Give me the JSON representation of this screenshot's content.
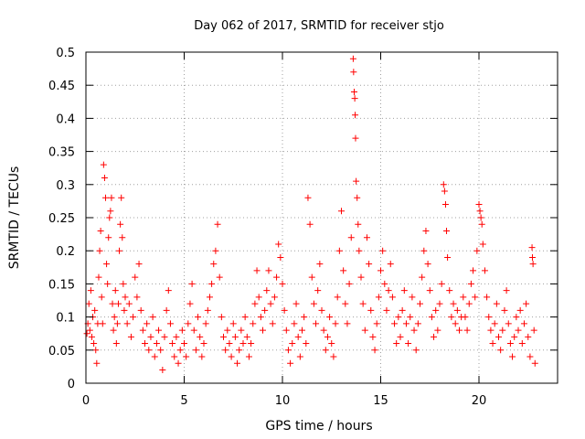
{
  "chart_data": {
    "type": "scatter",
    "title": "Day 062 of 2017, SRMTID for receiver stjo",
    "xlabel": "GPS time / hours",
    "ylabel": "SRMTID / TECUs",
    "xlim": [
      0,
      24
    ],
    "ylim": [
      0,
      0.5
    ],
    "xticks": [
      0,
      5,
      10,
      15,
      20
    ],
    "xtick_labels": [
      "0",
      "5",
      "10",
      "15",
      "20"
    ],
    "yticks": [
      0,
      0.05,
      0.1,
      0.15,
      0.2,
      0.25,
      0.3,
      0.35,
      0.4,
      0.45,
      0.5
    ],
    "ytick_labels": [
      "0",
      "0.05",
      "0.1",
      "0.15",
      "0.2",
      "0.25",
      "0.3",
      "0.35",
      "0.4",
      "0.45",
      "0.5"
    ],
    "grid": true,
    "marker": "+",
    "color": "#ff0000",
    "series": [
      {
        "name": "SRMTID",
        "points": [
          [
            0.05,
            0.075
          ],
          [
            0.1,
            0.09
          ],
          [
            0.15,
            0.12
          ],
          [
            0.2,
            0.08
          ],
          [
            0.25,
            0.14
          ],
          [
            0.3,
            0.07
          ],
          [
            0.35,
            0.1
          ],
          [
            0.4,
            0.06
          ],
          [
            0.45,
            0.11
          ],
          [
            0.5,
            0.05
          ],
          [
            0.55,
            0.03
          ],
          [
            0.6,
            0.09
          ],
          [
            0.65,
            0.16
          ],
          [
            0.7,
            0.2
          ],
          [
            0.75,
            0.23
          ],
          [
            0.8,
            0.13
          ],
          [
            0.85,
            0.09
          ],
          [
            0.9,
            0.33
          ],
          [
            0.95,
            0.31
          ],
          [
            1.0,
            0.28
          ],
          [
            1.05,
            0.18
          ],
          [
            1.1,
            0.15
          ],
          [
            1.15,
            0.22
          ],
          [
            1.2,
            0.25
          ],
          [
            1.25,
            0.26
          ],
          [
            1.3,
            0.28
          ],
          [
            1.35,
            0.12
          ],
          [
            1.4,
            0.08
          ],
          [
            1.45,
            0.1
          ],
          [
            1.5,
            0.14
          ],
          [
            1.55,
            0.06
          ],
          [
            1.6,
            0.09
          ],
          [
            1.65,
            0.12
          ],
          [
            1.7,
            0.2
          ],
          [
            1.75,
            0.24
          ],
          [
            1.8,
            0.28
          ],
          [
            1.85,
            0.22
          ],
          [
            1.9,
            0.15
          ],
          [
            1.95,
            0.11
          ],
          [
            2.0,
            0.13
          ],
          [
            2.1,
            0.09
          ],
          [
            2.2,
            0.12
          ],
          [
            2.3,
            0.07
          ],
          [
            2.4,
            0.1
          ],
          [
            2.5,
            0.16
          ],
          [
            2.6,
            0.13
          ],
          [
            2.7,
            0.18
          ],
          [
            2.8,
            0.11
          ],
          [
            2.9,
            0.08
          ],
          [
            3.0,
            0.06
          ],
          [
            3.1,
            0.09
          ],
          [
            3.2,
            0.05
          ],
          [
            3.3,
            0.07
          ],
          [
            3.4,
            0.1
          ],
          [
            3.5,
            0.04
          ],
          [
            3.6,
            0.06
          ],
          [
            3.7,
            0.08
          ],
          [
            3.8,
            0.05
          ],
          [
            3.9,
            0.02
          ],
          [
            4.0,
            0.07
          ],
          [
            4.1,
            0.11
          ],
          [
            4.2,
            0.14
          ],
          [
            4.3,
            0.09
          ],
          [
            4.4,
            0.06
          ],
          [
            4.5,
            0.04
          ],
          [
            4.6,
            0.07
          ],
          [
            4.7,
            0.03
          ],
          [
            4.8,
            0.05
          ],
          [
            4.9,
            0.08
          ],
          [
            5.0,
            0.06
          ],
          [
            5.1,
            0.04
          ],
          [
            5.2,
            0.09
          ],
          [
            5.3,
            0.12
          ],
          [
            5.4,
            0.15
          ],
          [
            5.5,
            0.08
          ],
          [
            5.6,
            0.05
          ],
          [
            5.7,
            0.1
          ],
          [
            5.8,
            0.07
          ],
          [
            5.9,
            0.04
          ],
          [
            6.0,
            0.06
          ],
          [
            6.1,
            0.09
          ],
          [
            6.2,
            0.11
          ],
          [
            6.3,
            0.13
          ],
          [
            6.4,
            0.15
          ],
          [
            6.5,
            0.18
          ],
          [
            6.6,
            0.2
          ],
          [
            6.7,
            0.24
          ],
          [
            6.8,
            0.16
          ],
          [
            6.9,
            0.1
          ],
          [
            7.0,
            0.07
          ],
          [
            7.1,
            0.05
          ],
          [
            7.2,
            0.08
          ],
          [
            7.3,
            0.06
          ],
          [
            7.4,
            0.04
          ],
          [
            7.5,
            0.09
          ],
          [
            7.6,
            0.07
          ],
          [
            7.7,
            0.03
          ],
          [
            7.8,
            0.05
          ],
          [
            7.9,
            0.08
          ],
          [
            8.0,
            0.06
          ],
          [
            8.1,
            0.1
          ],
          [
            8.2,
            0.07
          ],
          [
            8.3,
            0.04
          ],
          [
            8.4,
            0.06
          ],
          [
            8.5,
            0.09
          ],
          [
            8.6,
            0.12
          ],
          [
            8.7,
            0.17
          ],
          [
            8.8,
            0.13
          ],
          [
            8.9,
            0.1
          ],
          [
            9.0,
            0.08
          ],
          [
            9.1,
            0.11
          ],
          [
            9.2,
            0.14
          ],
          [
            9.3,
            0.17
          ],
          [
            9.4,
            0.12
          ],
          [
            9.5,
            0.09
          ],
          [
            9.6,
            0.13
          ],
          [
            9.7,
            0.16
          ],
          [
            9.8,
            0.21
          ],
          [
            9.9,
            0.19
          ],
          [
            10.0,
            0.15
          ],
          [
            10.1,
            0.11
          ],
          [
            10.2,
            0.08
          ],
          [
            10.3,
            0.05
          ],
          [
            10.4,
            0.03
          ],
          [
            10.5,
            0.06
          ],
          [
            10.6,
            0.09
          ],
          [
            10.7,
            0.12
          ],
          [
            10.8,
            0.07
          ],
          [
            10.9,
            0.04
          ],
          [
            11.0,
            0.08
          ],
          [
            11.1,
            0.1
          ],
          [
            11.2,
            0.06
          ],
          [
            11.3,
            0.28
          ],
          [
            11.4,
            0.24
          ],
          [
            11.5,
            0.16
          ],
          [
            11.6,
            0.12
          ],
          [
            11.7,
            0.09
          ],
          [
            11.8,
            0.14
          ],
          [
            11.9,
            0.18
          ],
          [
            12.0,
            0.11
          ],
          [
            12.1,
            0.08
          ],
          [
            12.2,
            0.05
          ],
          [
            12.3,
            0.07
          ],
          [
            12.4,
            0.1
          ],
          [
            12.5,
            0.06
          ],
          [
            12.6,
            0.04
          ],
          [
            12.7,
            0.09
          ],
          [
            12.8,
            0.13
          ],
          [
            12.9,
            0.2
          ],
          [
            13.0,
            0.26
          ],
          [
            13.1,
            0.17
          ],
          [
            13.2,
            0.12
          ],
          [
            13.3,
            0.09
          ],
          [
            13.4,
            0.15
          ],
          [
            13.5,
            0.22
          ],
          [
            13.6,
            0.49
          ],
          [
            13.62,
            0.47
          ],
          [
            13.65,
            0.44
          ],
          [
            13.68,
            0.43
          ],
          [
            13.7,
            0.405
          ],
          [
            13.72,
            0.37
          ],
          [
            13.75,
            0.305
          ],
          [
            13.8,
            0.28
          ],
          [
            13.85,
            0.24
          ],
          [
            13.9,
            0.2
          ],
          [
            14.0,
            0.16
          ],
          [
            14.1,
            0.12
          ],
          [
            14.2,
            0.08
          ],
          [
            14.3,
            0.22
          ],
          [
            14.4,
            0.18
          ],
          [
            14.5,
            0.11
          ],
          [
            14.6,
            0.07
          ],
          [
            14.7,
            0.05
          ],
          [
            14.8,
            0.09
          ],
          [
            14.9,
            0.13
          ],
          [
            15.0,
            0.17
          ],
          [
            15.1,
            0.2
          ],
          [
            15.2,
            0.15
          ],
          [
            15.3,
            0.11
          ],
          [
            15.4,
            0.14
          ],
          [
            15.5,
            0.18
          ],
          [
            15.6,
            0.13
          ],
          [
            15.7,
            0.09
          ],
          [
            15.8,
            0.06
          ],
          [
            15.9,
            0.1
          ],
          [
            16.0,
            0.07
          ],
          [
            16.1,
            0.11
          ],
          [
            16.2,
            0.14
          ],
          [
            16.3,
            0.09
          ],
          [
            16.4,
            0.06
          ],
          [
            16.5,
            0.1
          ],
          [
            16.6,
            0.13
          ],
          [
            16.7,
            0.08
          ],
          [
            16.8,
            0.05
          ],
          [
            16.9,
            0.09
          ],
          [
            17.0,
            0.12
          ],
          [
            17.1,
            0.16
          ],
          [
            17.2,
            0.2
          ],
          [
            17.3,
            0.23
          ],
          [
            17.4,
            0.18
          ],
          [
            17.5,
            0.14
          ],
          [
            17.6,
            0.1
          ],
          [
            17.7,
            0.07
          ],
          [
            17.8,
            0.11
          ],
          [
            17.9,
            0.08
          ],
          [
            18.0,
            0.12
          ],
          [
            18.1,
            0.15
          ],
          [
            18.2,
            0.3
          ],
          [
            18.25,
            0.29
          ],
          [
            18.3,
            0.27
          ],
          [
            18.35,
            0.23
          ],
          [
            18.4,
            0.19
          ],
          [
            18.5,
            0.14
          ],
          [
            18.6,
            0.1
          ],
          [
            18.7,
            0.12
          ],
          [
            18.8,
            0.09
          ],
          [
            18.9,
            0.11
          ],
          [
            19.0,
            0.08
          ],
          [
            19.1,
            0.1
          ],
          [
            19.2,
            0.13
          ],
          [
            19.3,
            0.1
          ],
          [
            19.4,
            0.08
          ],
          [
            19.5,
            0.12
          ],
          [
            19.6,
            0.15
          ],
          [
            19.7,
            0.17
          ],
          [
            19.8,
            0.13
          ],
          [
            19.9,
            0.2
          ],
          [
            20.0,
            0.27
          ],
          [
            20.05,
            0.26
          ],
          [
            20.1,
            0.25
          ],
          [
            20.15,
            0.24
          ],
          [
            20.2,
            0.21
          ],
          [
            20.3,
            0.17
          ],
          [
            20.4,
            0.13
          ],
          [
            20.5,
            0.1
          ],
          [
            20.6,
            0.08
          ],
          [
            20.7,
            0.06
          ],
          [
            20.8,
            0.09
          ],
          [
            20.9,
            0.12
          ],
          [
            21.0,
            0.07
          ],
          [
            21.1,
            0.05
          ],
          [
            21.2,
            0.08
          ],
          [
            21.3,
            0.11
          ],
          [
            21.4,
            0.14
          ],
          [
            21.5,
            0.09
          ],
          [
            21.6,
            0.06
          ],
          [
            21.7,
            0.04
          ],
          [
            21.8,
            0.07
          ],
          [
            21.9,
            0.1
          ],
          [
            22.0,
            0.08
          ],
          [
            22.1,
            0.11
          ],
          [
            22.2,
            0.06
          ],
          [
            22.3,
            0.09
          ],
          [
            22.4,
            0.12
          ],
          [
            22.5,
            0.07
          ],
          [
            22.6,
            0.04
          ],
          [
            22.7,
            0.205
          ],
          [
            22.72,
            0.19
          ],
          [
            22.75,
            0.18
          ],
          [
            22.8,
            0.08
          ],
          [
            22.85,
            0.03
          ]
        ]
      }
    ]
  }
}
